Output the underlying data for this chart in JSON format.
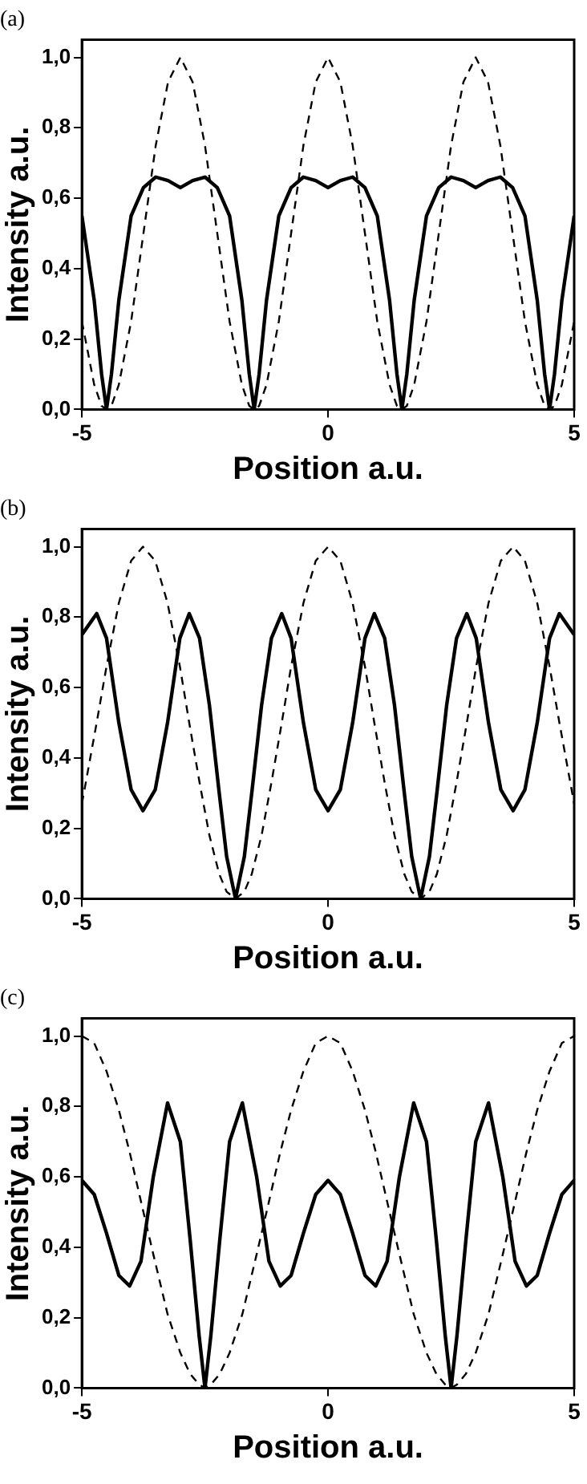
{
  "chart_data": [
    {
      "type": "line",
      "title": "(a)",
      "xlabel": "Position a.u.",
      "ylabel": "Intensity a.u.",
      "marker": "none",
      "x": [
        -5,
        -4.75,
        -4.6,
        -4.5,
        -4.4,
        -4.25,
        -4,
        -3.75,
        -3.5,
        -3.25,
        -3,
        -2.75,
        -2.5,
        -2.25,
        -2,
        -1.75,
        -1.6,
        -1.5,
        -1.4,
        -1.25,
        -1,
        -0.75,
        -0.5,
        -0.25,
        0,
        0.25,
        0.5,
        0.75,
        1,
        1.25,
        1.4,
        1.5,
        1.6,
        1.75,
        2,
        2.25,
        2.5,
        2.75,
        3,
        3.25,
        3.5,
        3.75,
        4,
        4.25,
        4.4,
        4.5,
        4.6,
        4.75,
        5
      ],
      "series": [
        {
          "color": "#000000",
          "line_style": "dashed",
          "values": [
            0.25,
            0.07,
            0.01,
            0,
            0.01,
            0.07,
            0.25,
            0.5,
            0.75,
            0.93,
            1,
            0.93,
            0.75,
            0.5,
            0.25,
            0.07,
            0.01,
            0,
            0.01,
            0.07,
            0.25,
            0.5,
            0.75,
            0.93,
            1,
            0.93,
            0.75,
            0.5,
            0.25,
            0.07,
            0.01,
            0,
            0.01,
            0.07,
            0.25,
            0.5,
            0.75,
            0.93,
            1,
            0.93,
            0.75,
            0.5,
            0.25,
            0.07,
            0.01,
            0,
            0.01,
            0.07,
            0.25
          ]
        },
        {
          "color": "#000000",
          "line_style": "solid",
          "values": [
            0.55,
            0.31,
            0.1,
            0,
            0.1,
            0.31,
            0.55,
            0.63,
            0.66,
            0.65,
            0.63,
            0.65,
            0.66,
            0.63,
            0.55,
            0.31,
            0.1,
            0,
            0.1,
            0.31,
            0.55,
            0.63,
            0.66,
            0.65,
            0.63,
            0.65,
            0.66,
            0.63,
            0.55,
            0.31,
            0.1,
            0,
            0.1,
            0.31,
            0.55,
            0.63,
            0.66,
            0.65,
            0.63,
            0.65,
            0.66,
            0.63,
            0.55,
            0.31,
            0.1,
            0,
            0.1,
            0.31,
            0.55
          ]
        }
      ],
      "xlim": [
        -5,
        5
      ],
      "ylim": [
        0,
        1.05
      ],
      "xticks": [
        -5,
        0,
        5
      ],
      "yticks": [
        {
          "value": 0,
          "label": "0,0"
        },
        {
          "value": 0.2,
          "label": "0,2"
        },
        {
          "value": 0.4,
          "label": "0,4"
        },
        {
          "value": 0.6,
          "label": "0,6"
        },
        {
          "value": 0.8,
          "label": "0,8"
        },
        {
          "value": 1,
          "label": "1,0"
        }
      ]
    },
    {
      "type": "line",
      "title": "(b)",
      "xlabel": "Position a.u.",
      "ylabel": "Intensity a.u.",
      "marker": "none",
      "x": [
        -5,
        -4.7,
        -4.5,
        -4.25,
        -4,
        -3.76,
        -3.51,
        -3.26,
        -3.01,
        -2.82,
        -2.61,
        -2.41,
        -2.21,
        -2.06,
        -1.88,
        -1.7,
        -1.55,
        -1.35,
        -1.15,
        -0.94,
        -0.75,
        -0.5,
        -0.25,
        0,
        0.25,
        0.5,
        0.75,
        0.94,
        1.15,
        1.35,
        1.55,
        1.7,
        1.88,
        2.06,
        2.21,
        2.41,
        2.61,
        2.82,
        3.01,
        3.26,
        3.51,
        3.76,
        4,
        4.25,
        4.5,
        4.7,
        5
      ],
      "series": [
        {
          "color": "#000000",
          "line_style": "dashed",
          "values": [
            0.27,
            0.5,
            0.66,
            0.84,
            0.96,
            1,
            0.96,
            0.84,
            0.66,
            0.5,
            0.33,
            0.18,
            0.07,
            0.02,
            0,
            0.02,
            0.07,
            0.18,
            0.33,
            0.5,
            0.66,
            0.84,
            0.96,
            1,
            0.96,
            0.84,
            0.66,
            0.5,
            0.33,
            0.18,
            0.07,
            0.02,
            0,
            0.02,
            0.07,
            0.18,
            0.33,
            0.5,
            0.66,
            0.84,
            0.96,
            1,
            0.96,
            0.84,
            0.66,
            0.5,
            0.27
          ]
        },
        {
          "color": "#000000",
          "line_style": "solid",
          "values": [
            0.75,
            0.81,
            0.74,
            0.5,
            0.31,
            0.25,
            0.31,
            0.5,
            0.74,
            0.81,
            0.74,
            0.55,
            0.3,
            0.12,
            0,
            0.12,
            0.3,
            0.55,
            0.74,
            0.81,
            0.74,
            0.5,
            0.31,
            0.25,
            0.31,
            0.5,
            0.74,
            0.81,
            0.74,
            0.55,
            0.3,
            0.12,
            0,
            0.12,
            0.3,
            0.55,
            0.74,
            0.81,
            0.74,
            0.5,
            0.31,
            0.25,
            0.31,
            0.5,
            0.74,
            0.81,
            0.75
          ]
        }
      ],
      "xlim": [
        -5,
        5
      ],
      "ylim": [
        0,
        1.05
      ],
      "xticks": [
        -5,
        0,
        5
      ],
      "yticks": [
        {
          "value": 0,
          "label": "0,0"
        },
        {
          "value": 0.2,
          "label": "0,2"
        },
        {
          "value": 0.4,
          "label": "0,4"
        },
        {
          "value": 0.6,
          "label": "0,6"
        },
        {
          "value": 0.8,
          "label": "0,8"
        },
        {
          "value": 1,
          "label": "1,0"
        }
      ]
    },
    {
      "type": "line",
      "title": "(c)",
      "xlabel": "Position a.u.",
      "ylabel": "Intensity a.u.",
      "marker": "none",
      "x": [
        -5,
        -4.75,
        -4.5,
        -4.25,
        -4.03,
        -3.8,
        -3.55,
        -3.26,
        -3,
        -2.8,
        -2.62,
        -2.5,
        -2.38,
        -2.2,
        -2,
        -1.74,
        -1.45,
        -1.2,
        -0.97,
        -0.75,
        -0.5,
        -0.25,
        0,
        0.25,
        0.5,
        0.75,
        0.97,
        1.2,
        1.45,
        1.74,
        2,
        2.2,
        2.38,
        2.5,
        2.62,
        2.8,
        3,
        3.26,
        3.55,
        3.8,
        4.03,
        4.25,
        4.5,
        4.75,
        5
      ],
      "series": [
        {
          "color": "#000000",
          "line_style": "dashed",
          "values": [
            1,
            0.98,
            0.9,
            0.79,
            0.67,
            0.53,
            0.38,
            0.21,
            0.1,
            0.04,
            0.01,
            0,
            0.01,
            0.04,
            0.1,
            0.21,
            0.38,
            0.53,
            0.67,
            0.79,
            0.9,
            0.98,
            1,
            0.98,
            0.9,
            0.79,
            0.67,
            0.53,
            0.38,
            0.21,
            0.1,
            0.04,
            0.01,
            0,
            0.01,
            0.04,
            0.1,
            0.21,
            0.38,
            0.53,
            0.67,
            0.79,
            0.9,
            0.98,
            1
          ]
        },
        {
          "color": "#000000",
          "line_style": "solid",
          "values": [
            0.59,
            0.55,
            0.44,
            0.32,
            0.29,
            0.36,
            0.6,
            0.81,
            0.7,
            0.42,
            0.15,
            0,
            0.15,
            0.42,
            0.7,
            0.81,
            0.6,
            0.36,
            0.29,
            0.32,
            0.44,
            0.55,
            0.59,
            0.55,
            0.44,
            0.32,
            0.29,
            0.36,
            0.6,
            0.81,
            0.7,
            0.42,
            0.15,
            0,
            0.15,
            0.42,
            0.7,
            0.81,
            0.6,
            0.36,
            0.29,
            0.32,
            0.44,
            0.55,
            0.59
          ]
        }
      ],
      "xlim": [
        -5,
        5
      ],
      "ylim": [
        0,
        1.05
      ],
      "xticks": [
        -5,
        0,
        5
      ],
      "yticks": [
        {
          "value": 0,
          "label": "0,0"
        },
        {
          "value": 0.2,
          "label": "0,2"
        },
        {
          "value": 0.4,
          "label": "0,4"
        },
        {
          "value": 0.6,
          "label": "0,6"
        },
        {
          "value": 0.8,
          "label": "0,8"
        },
        {
          "value": 1,
          "label": "1,0"
        }
      ]
    }
  ]
}
